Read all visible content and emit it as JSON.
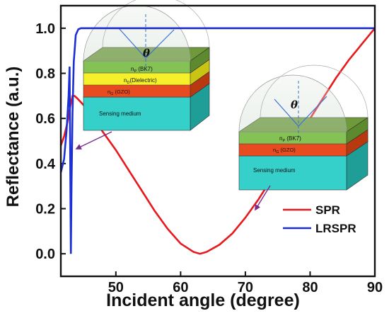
{
  "chart_data": {
    "type": "line",
    "xlabel": "Incident angle (degree)",
    "ylabel": "Reflectance (a.u.)",
    "xlim": [
      41.5,
      90
    ],
    "ylim": [
      -0.1,
      1.1
    ],
    "xticks": [
      50,
      60,
      70,
      80,
      90
    ],
    "yticks": [
      0.0,
      0.2,
      0.4,
      0.6,
      0.8,
      1.0
    ],
    "xtick_labels": [
      "50",
      "60",
      "70",
      "80",
      "90"
    ],
    "ytick_labels": [
      "0.0",
      "0.2",
      "0.4",
      "0.6",
      "0.8",
      "1.0"
    ],
    "legend_position": "bottom-right",
    "series": [
      {
        "name": "SPR",
        "color": "#e8191c",
        "x": [
          41.5,
          42.0,
          42.5,
          43.0,
          43.3,
          43.6,
          44,
          45,
          46,
          48,
          50,
          52,
          54,
          56,
          58,
          60,
          62,
          63,
          64,
          66,
          68,
          70,
          72,
          74,
          76,
          78,
          80,
          82,
          84,
          86,
          88,
          90
        ],
        "y": [
          0.48,
          0.52,
          0.58,
          0.66,
          0.7,
          0.7,
          0.69,
          0.66,
          0.62,
          0.54,
          0.46,
          0.37,
          0.28,
          0.19,
          0.11,
          0.045,
          0.008,
          0.0,
          0.008,
          0.04,
          0.09,
          0.16,
          0.24,
          0.33,
          0.42,
          0.51,
          0.6,
          0.69,
          0.78,
          0.86,
          0.93,
          1.0
        ]
      },
      {
        "name": "LRSPR",
        "color": "#1c2fd6",
        "x": [
          41.5,
          42.0,
          42.4,
          42.7,
          42.85,
          42.95,
          43.05,
          43.15,
          43.3,
          43.5,
          43.8,
          44.2,
          44.6,
          45.0,
          46,
          50,
          60,
          70,
          80,
          90
        ],
        "y": [
          0.36,
          0.42,
          0.55,
          0.7,
          0.83,
          0.42,
          0.0,
          0.3,
          0.62,
          0.85,
          0.97,
          0.995,
          1.0,
          1.0,
          1.0,
          1.0,
          1.0,
          1.0,
          1.0,
          1.0
        ]
      }
    ]
  },
  "insets": {
    "left": {
      "theta": "θ",
      "layers": [
        "n",
        "P",
        " (BK7)",
        "n",
        "D",
        "(Dielectric)",
        "n",
        "G",
        " (GZO)"
      ],
      "medium": "Sensing medium"
    },
    "right": {
      "theta": "θ",
      "layers": [
        "n",
        "P",
        " (BK7)",
        "n",
        "G",
        " (GZO)"
      ],
      "medium": "Sensing medium"
    }
  }
}
